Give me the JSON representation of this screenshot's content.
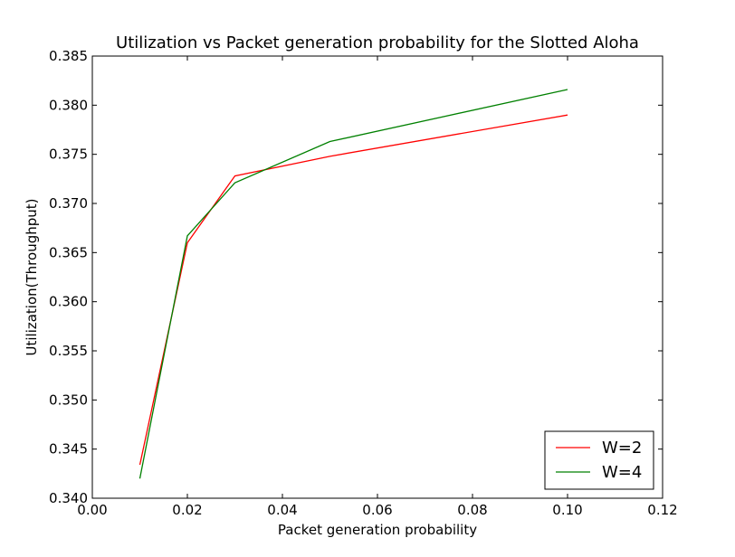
{
  "chart_data": {
    "type": "line",
    "title": "Utilization vs Packet generation probability for the Slotted Aloha",
    "xlabel": "Packet generation probability",
    "ylabel": "Utilization(Throughput)",
    "xlim": [
      0.0,
      0.12
    ],
    "ylim": [
      0.34,
      0.385
    ],
    "x_ticks": [
      "0.00",
      "0.02",
      "0.04",
      "0.06",
      "0.08",
      "0.10",
      "0.12"
    ],
    "y_ticks": [
      "0.340",
      "0.345",
      "0.350",
      "0.355",
      "0.360",
      "0.365",
      "0.370",
      "0.375",
      "0.380",
      "0.385"
    ],
    "grid": false,
    "legend_position": "lower-right",
    "x": [
      0.01,
      0.02,
      0.03,
      0.05,
      0.1
    ],
    "series": [
      {
        "name": "W=2",
        "color": "#ff0000",
        "values": [
          0.3434,
          0.366,
          0.3728,
          0.3748,
          0.379
        ]
      },
      {
        "name": "W=4",
        "color": "#008000",
        "values": [
          0.342,
          0.3667,
          0.3721,
          0.3763,
          0.3816
        ]
      }
    ]
  }
}
